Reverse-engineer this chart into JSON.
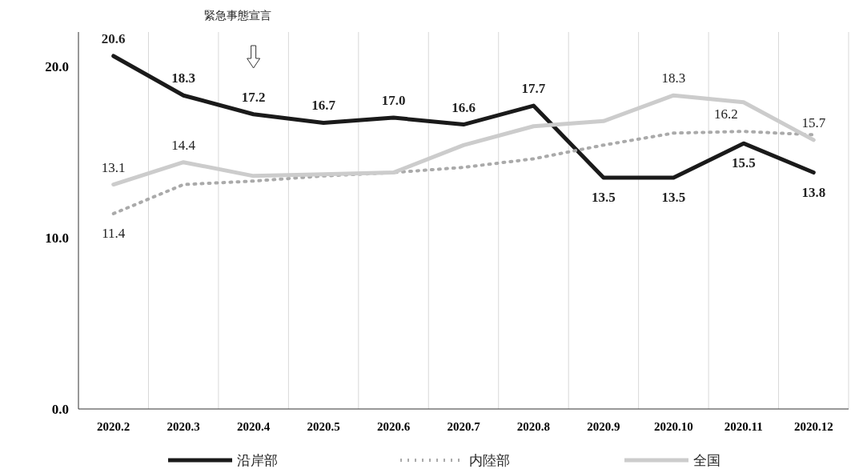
{
  "chart_data": {
    "type": "line",
    "categories": [
      "2020.2",
      "2020.3",
      "2020.4",
      "2020.5",
      "2020.6",
      "2020.7",
      "2020.8",
      "2020.9",
      "2020.10",
      "2020.11",
      "2020.12"
    ],
    "series": [
      {
        "name": "沿岸部",
        "color": "#1a1a1a",
        "line_style": "solid",
        "values": [
          20.6,
          18.3,
          17.2,
          16.7,
          17.0,
          16.6,
          17.7,
          13.5,
          13.5,
          15.5,
          13.8
        ],
        "value_labels": [
          "20.6",
          "18.3",
          "17.2",
          "16.7",
          "17.0",
          "16.6",
          "17.7",
          "13.5",
          "13.5",
          "15.5",
          "13.8"
        ]
      },
      {
        "name": "内陸部",
        "color": "#aaaaaa",
        "line_style": "dotted",
        "values": [
          11.4,
          13.1,
          13.3,
          13.6,
          13.8,
          14.1,
          14.6,
          15.4,
          16.1,
          16.2,
          16.0
        ],
        "value_labels": [
          "11.4",
          null,
          null,
          null,
          null,
          null,
          null,
          null,
          null,
          "16.2",
          null
        ]
      },
      {
        "name": "全国",
        "color": "#cccccc",
        "line_style": "solid",
        "values": [
          13.1,
          14.4,
          13.6,
          13.7,
          13.8,
          15.4,
          16.5,
          16.8,
          18.3,
          17.9,
          15.7
        ],
        "value_labels": [
          "13.1",
          "14.4",
          null,
          null,
          null,
          null,
          null,
          null,
          "18.3",
          null,
          "15.7"
        ]
      }
    ],
    "ylim": [
      0,
      22
    ],
    "yticks": [
      {
        "value": 0,
        "label": "0.0"
      },
      {
        "value": 10,
        "label": "10.0"
      },
      {
        "value": 20,
        "label": "20.0"
      }
    ],
    "grid": "x",
    "legend": "bottom",
    "annotations": [
      "緊急事態宣言"
    ]
  }
}
